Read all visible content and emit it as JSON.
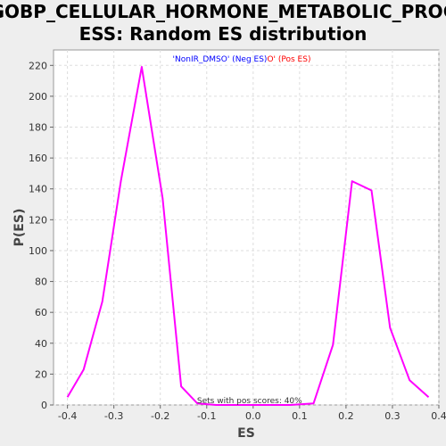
{
  "chart_data": {
    "type": "line",
    "title_line1": "GOBP_CELLULAR_HORMONE_METABOLIC_PROC",
    "title_line2": "ESS: Random ES distribution",
    "xlabel": "ES",
    "ylabel": "P(ES)",
    "xlim": [
      -0.43,
      0.4
    ],
    "ylim": [
      0,
      230
    ],
    "xticks": [
      -0.4,
      -0.3,
      -0.2,
      -0.1,
      0.0,
      0.1,
      0.2,
      0.3,
      0.4
    ],
    "xtick_labels": [
      "-0.4",
      "-0.3",
      "-0.2",
      "-0.1",
      "0.0",
      "0.1",
      "0.2",
      "0.3",
      "0.4"
    ],
    "yticks": [
      0,
      20,
      40,
      60,
      80,
      100,
      120,
      140,
      160,
      180,
      200,
      220
    ],
    "ytick_labels": [
      "0",
      "20",
      "40",
      "60",
      "80",
      "100",
      "120",
      "140",
      "160",
      "180",
      "200",
      "220"
    ],
    "grid": true,
    "legend_placement": "top-center",
    "legend": {
      "neg_text": "'NonIR_DMSO' (Neg ES)",
      "pos_text": "O' (Pos ES)",
      "neg_color": "#0000ff",
      "pos_color": "#ff0000"
    },
    "annotation": "Sets with pos scores: 40%",
    "series": [
      {
        "color": "#ff00ff",
        "x": [
          -0.4,
          -0.365,
          -0.325,
          -0.285,
          -0.24,
          -0.195,
          -0.155,
          -0.12,
          -0.08,
          -0.04,
          0.0,
          0.04,
          0.08,
          0.13,
          0.172,
          0.213,
          0.255,
          0.295,
          0.337,
          0.378
        ],
        "y": [
          5,
          23,
          67,
          145,
          219,
          134,
          12,
          1,
          0,
          0,
          0,
          0,
          0,
          1,
          39,
          145,
          139,
          50,
          16,
          5
        ]
      }
    ]
  }
}
